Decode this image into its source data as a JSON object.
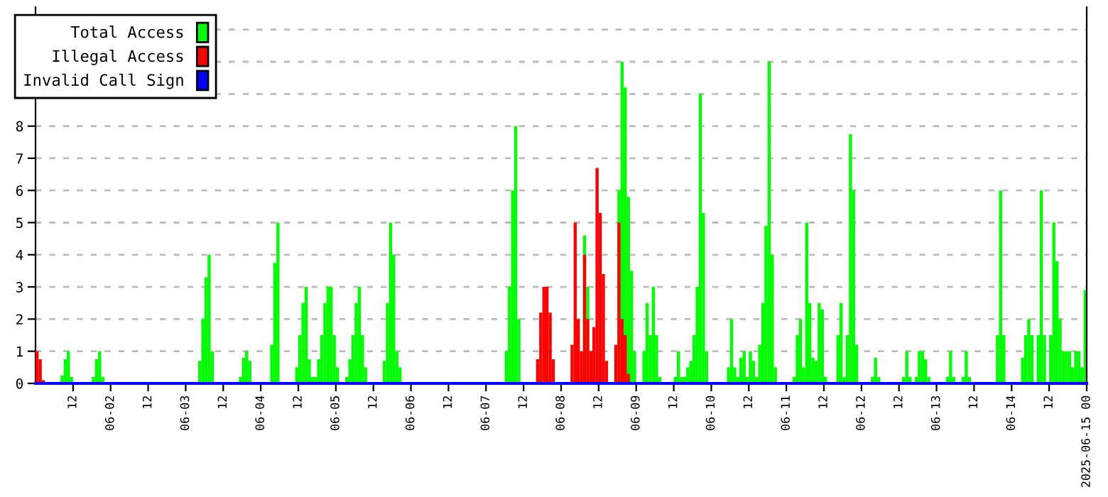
{
  "chart_data": {
    "type": "bar",
    "legend": "top left",
    "grid": "y",
    "xlim": [
      "2025-06-01T00:00",
      "2025-06-15T00:00"
    ],
    "xticks": [
      {
        "value": "2025-06-01T12:00",
        "label": "12"
      },
      {
        "value": "2025-06-02T00:00",
        "label": "06-02"
      },
      {
        "value": "2025-06-02T12:00",
        "label": "12"
      },
      {
        "value": "2025-06-03T00:00",
        "label": "06-03"
      },
      {
        "value": "2025-06-03T12:00",
        "label": "12"
      },
      {
        "value": "2025-06-04T00:00",
        "label": "06-04"
      },
      {
        "value": "2025-06-04T12:00",
        "label": "12"
      },
      {
        "value": "2025-06-05T00:00",
        "label": "06-05"
      },
      {
        "value": "2025-06-05T12:00",
        "label": "12"
      },
      {
        "value": "2025-06-06T00:00",
        "label": "06-06"
      },
      {
        "value": "2025-06-06T12:00",
        "label": "12"
      },
      {
        "value": "2025-06-07T00:00",
        "label": "06-07"
      },
      {
        "value": "2025-06-07T12:00",
        "label": "12"
      },
      {
        "value": "2025-06-08T00:00",
        "label": "06-08"
      },
      {
        "value": "2025-06-08T12:00",
        "label": "12"
      },
      {
        "value": "2025-06-09T00:00",
        "label": "06-09"
      },
      {
        "value": "2025-06-09T12:00",
        "label": "12"
      },
      {
        "value": "2025-06-10T00:00",
        "label": "06-10"
      },
      {
        "value": "2025-06-10T12:00",
        "label": "12"
      },
      {
        "value": "2025-06-11T00:00",
        "label": "06-11"
      },
      {
        "value": "2025-06-11T12:00",
        "label": "12"
      },
      {
        "value": "2025-06-12T00:00",
        "label": "06-12"
      },
      {
        "value": "2025-06-12T12:00",
        "label": "12"
      },
      {
        "value": "2025-06-13T00:00",
        "label": "06-13"
      },
      {
        "value": "2025-06-13T12:00",
        "label": "12"
      },
      {
        "value": "2025-06-14T00:00",
        "label": "06-14"
      },
      {
        "value": "2025-06-14T12:00",
        "label": "12"
      },
      {
        "value": "2025-06-15T00:00",
        "label": "2025-06-15 00"
      }
    ],
    "ylim": [
      0,
      11.7
    ],
    "yticks": [
      0,
      1,
      2,
      3,
      4,
      5,
      6,
      7,
      8,
      {
        "value": 9,
        "label": null
      },
      {
        "value": 10,
        "label": null
      },
      {
        "value": 11,
        "label": null
      }
    ],
    "series": [
      {
        "name": "Total Access",
        "color": "#00ff00",
        "x": [
          "2025-06-01T08:00",
          "2025-06-01T09:00",
          "2025-06-01T10:00",
          "2025-06-01T11:00",
          "2025-06-01T18:00",
          "2025-06-01T19:00",
          "2025-06-01T20:00",
          "2025-06-01T21:00",
          "2025-06-03T04:00",
          "2025-06-03T05:00",
          "2025-06-03T06:00",
          "2025-06-03T07:00",
          "2025-06-03T08:00",
          "2025-06-03T17:00",
          "2025-06-03T18:00",
          "2025-06-03T19:00",
          "2025-06-03T20:00",
          "2025-06-04T03:00",
          "2025-06-04T04:00",
          "2025-06-04T05:00",
          "2025-06-04T11:00",
          "2025-06-04T12:00",
          "2025-06-04T13:00",
          "2025-06-04T14:00",
          "2025-06-04T15:00",
          "2025-06-04T16:00",
          "2025-06-04T17:00",
          "2025-06-04T18:00",
          "2025-06-04T19:00",
          "2025-06-04T20:00",
          "2025-06-04T21:00",
          "2025-06-04T22:00",
          "2025-06-04T23:00",
          "2025-06-05T00:00",
          "2025-06-05T03:00",
          "2025-06-05T04:00",
          "2025-06-05T05:00",
          "2025-06-05T06:00",
          "2025-06-05T07:00",
          "2025-06-05T08:00",
          "2025-06-05T09:00",
          "2025-06-05T15:00",
          "2025-06-05T16:00",
          "2025-06-05T17:00",
          "2025-06-05T18:00",
          "2025-06-05T19:00",
          "2025-06-05T20:00",
          "2025-06-07T06:00",
          "2025-06-07T07:00",
          "2025-06-07T08:00",
          "2025-06-07T09:00",
          "2025-06-07T10:00",
          "2025-06-08T07:00",
          "2025-06-08T08:00",
          "2025-06-08T18:00",
          "2025-06-08T19:00",
          "2025-06-08T20:00",
          "2025-06-08T21:00",
          "2025-06-08T22:00",
          "2025-06-08T23:00",
          "2025-06-09T02:00",
          "2025-06-09T03:00",
          "2025-06-09T04:00",
          "2025-06-09T05:00",
          "2025-06-09T06:00",
          "2025-06-09T07:00",
          "2025-06-09T12:00",
          "2025-06-09T13:00",
          "2025-06-09T14:00",
          "2025-06-09T15:00",
          "2025-06-09T16:00",
          "2025-06-09T17:00",
          "2025-06-09T18:00",
          "2025-06-09T19:00",
          "2025-06-09T20:00",
          "2025-06-09T21:00",
          "2025-06-09T22:00",
          "2025-06-10T05:00",
          "2025-06-10T06:00",
          "2025-06-10T07:00",
          "2025-06-10T08:00",
          "2025-06-10T09:00",
          "2025-06-10T10:00",
          "2025-06-10T11:00",
          "2025-06-10T12:00",
          "2025-06-10T13:00",
          "2025-06-10T14:00",
          "2025-06-10T15:00",
          "2025-06-10T16:00",
          "2025-06-10T17:00",
          "2025-06-10T18:00",
          "2025-06-10T19:00",
          "2025-06-10T20:00",
          "2025-06-11T02:00",
          "2025-06-11T03:00",
          "2025-06-11T04:00",
          "2025-06-11T05:00",
          "2025-06-11T06:00",
          "2025-06-11T07:00",
          "2025-06-11T08:00",
          "2025-06-11T09:00",
          "2025-06-11T10:00",
          "2025-06-11T11:00",
          "2025-06-11T12:00",
          "2025-06-11T16:00",
          "2025-06-11T17:00",
          "2025-06-11T18:00",
          "2025-06-11T19:00",
          "2025-06-11T20:00",
          "2025-06-11T21:00",
          "2025-06-11T22:00",
          "2025-06-12T03:00",
          "2025-06-12T04:00",
          "2025-06-12T05:00",
          "2025-06-12T13:00",
          "2025-06-12T14:00",
          "2025-06-12T15:00",
          "2025-06-12T17:00",
          "2025-06-12T18:00",
          "2025-06-12T19:00",
          "2025-06-12T20:00",
          "2025-06-12T21:00",
          "2025-06-13T03:00",
          "2025-06-13T04:00",
          "2025-06-13T05:00",
          "2025-06-13T08:00",
          "2025-06-13T09:00",
          "2025-06-13T10:00",
          "2025-06-13T19:00",
          "2025-06-13T20:00",
          "2025-06-13T21:00",
          "2025-06-14T03:00",
          "2025-06-14T04:00",
          "2025-06-14T05:00",
          "2025-06-14T06:00",
          "2025-06-14T08:00",
          "2025-06-14T09:00",
          "2025-06-14T10:00",
          "2025-06-14T12:00",
          "2025-06-14T13:00",
          "2025-06-14T14:00",
          "2025-06-14T15:00",
          "2025-06-14T16:00",
          "2025-06-14T17:00",
          "2025-06-14T18:00",
          "2025-06-14T19:00",
          "2025-06-14T20:00",
          "2025-06-14T21:00",
          "2025-06-14T22:00",
          "2025-06-14T23:00"
        ],
        "values": [
          0.25,
          0.75,
          1,
          0.2,
          0.2,
          0.75,
          1,
          0.2,
          0.7,
          2,
          3.3,
          4,
          1,
          0.2,
          0.8,
          1,
          0.7,
          1.2,
          3.75,
          5,
          0.5,
          1.5,
          2.5,
          3,
          0.75,
          0.2,
          0.2,
          0.75,
          1.5,
          2.5,
          3,
          3,
          1.5,
          0.5,
          0.2,
          0.75,
          1.5,
          2.5,
          3,
          1.5,
          0.5,
          0.7,
          2.5,
          5,
          4,
          1,
          0.5,
          1,
          3,
          6,
          8,
          2,
          4.6,
          3,
          6,
          10,
          9.2,
          5.8,
          3.5,
          1,
          1,
          2.5,
          1.5,
          3,
          1.5,
          0.2,
          0.2,
          1,
          0.2,
          0.2,
          0.5,
          0.7,
          1.5,
          3,
          9,
          5.3,
          1,
          0.5,
          2,
          0.5,
          0.2,
          0.8,
          1,
          0.2,
          1,
          0.7,
          0.2,
          1.2,
          2.5,
          4.9,
          10,
          4,
          0.5,
          0.2,
          1.5,
          2,
          0.5,
          5,
          2.5,
          0.8,
          0.7,
          2.5,
          2.3,
          0.2,
          1.5,
          2.5,
          0.2,
          1.5,
          7.75,
          6,
          1.2,
          0.2,
          0.8,
          0.2,
          0.2,
          1,
          0.2,
          0.2,
          1,
          1,
          0.75,
          0.2,
          0.2,
          1,
          0.2,
          0.2,
          1,
          0.2,
          1.5,
          6,
          1.5,
          0.8,
          1.5,
          2,
          1.5,
          1.5,
          6,
          1.5,
          1.5,
          5,
          3.8,
          2,
          1,
          1,
          1,
          0.5,
          1,
          1,
          0.5,
          2.9
        ]
      },
      {
        "name": "Illegal Access",
        "color": "#ff0000",
        "x": [
          "2025-06-01T00:00",
          "2025-06-01T01:00",
          "2025-06-01T02:00",
          "2025-06-07T16:00",
          "2025-06-07T17:00",
          "2025-06-07T18:00",
          "2025-06-07T19:00",
          "2025-06-07T20:00",
          "2025-06-07T21:00",
          "2025-06-08T03:00",
          "2025-06-08T04:00",
          "2025-06-08T05:00",
          "2025-06-08T06:00",
          "2025-06-08T07:00",
          "2025-06-08T08:00",
          "2025-06-08T09:00",
          "2025-06-08T10:00",
          "2025-06-08T11:00",
          "2025-06-08T12:00",
          "2025-06-08T13:00",
          "2025-06-08T14:00",
          "2025-06-08T17:00",
          "2025-06-08T18:00",
          "2025-06-08T19:00",
          "2025-06-08T20:00",
          "2025-06-08T21:00"
        ],
        "values": [
          1,
          0.75,
          0.1,
          0.75,
          2.2,
          3,
          3,
          2.2,
          0.75,
          1.2,
          5,
          2,
          1,
          4,
          2,
          1,
          1.75,
          6.7,
          5.3,
          3.4,
          0.7,
          1.2,
          5,
          2,
          1.5,
          0.3
        ]
      },
      {
        "name": "Invalid Call Sign",
        "color": "#0000ff",
        "type": "line",
        "x": [
          "2025-06-01T00:00",
          "2025-06-15T00:00"
        ],
        "values": [
          0,
          0
        ]
      }
    ]
  }
}
